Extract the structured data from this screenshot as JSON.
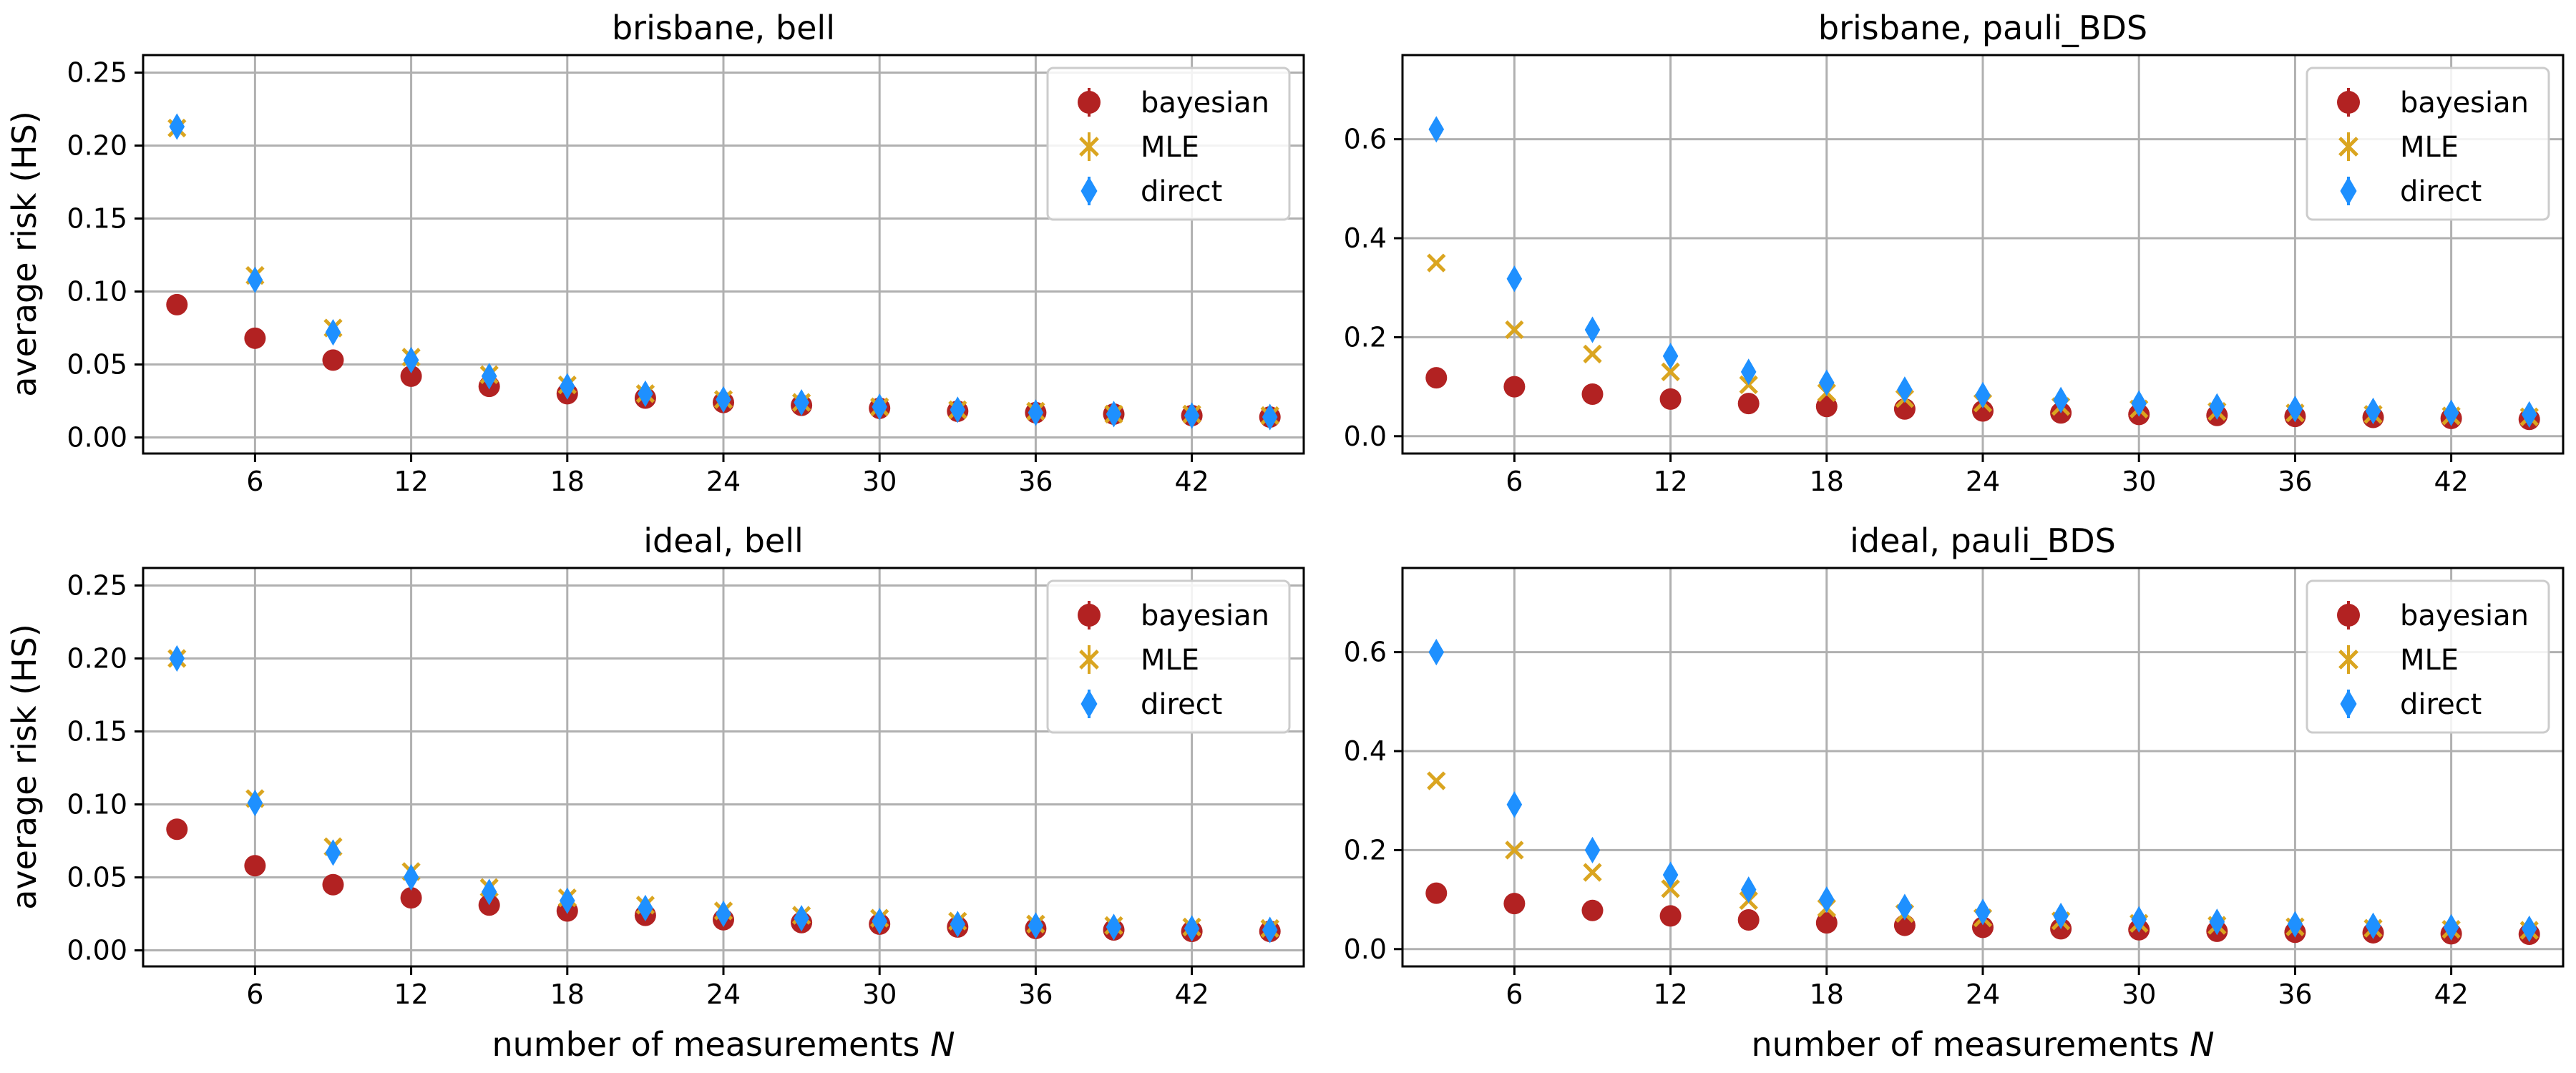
{
  "figure": {
    "xlabel": "number of measurements",
    "xlabel_var": "N",
    "ylabel": "average risk (HS)"
  },
  "colors": {
    "bayesian": "#b22222",
    "MLE": "#daa520",
    "direct": "#1e90ff",
    "grid": "#b0b0b0"
  },
  "legend": [
    {
      "name": "bayesian",
      "marker": "circle-errorbar"
    },
    {
      "name": "MLE",
      "marker": "x-errorbar"
    },
    {
      "name": "direct",
      "marker": "thin-diamond-errorbar"
    }
  ],
  "chart_data": [
    {
      "type": "scatter",
      "title": "brisbane, bell",
      "x": [
        3,
        6,
        9,
        12,
        15,
        18,
        21,
        24,
        27,
        30,
        33,
        36,
        39,
        42,
        45
      ],
      "xticks": [
        "6",
        "12",
        "18",
        "24",
        "30",
        "36",
        "42"
      ],
      "xlim": [
        1.7,
        46.3
      ],
      "ylim": [
        -0.011,
        0.262
      ],
      "yticks": [
        "0.00",
        "0.05",
        "0.10",
        "0.15",
        "0.20",
        "0.25"
      ],
      "grid": true,
      "legend_position": "top-right",
      "series": [
        {
          "name": "bayesian",
          "values": [
            0.091,
            0.068,
            0.053,
            0.042,
            0.035,
            0.03,
            0.027,
            0.024,
            0.022,
            0.02,
            0.018,
            0.017,
            0.016,
            0.015,
            0.014
          ]
        },
        {
          "name": "MLE",
          "values": [
            0.212,
            0.111,
            0.075,
            0.055,
            0.043,
            0.036,
            0.03,
            0.026,
            0.024,
            0.021,
            0.019,
            0.018,
            0.016,
            0.016,
            0.015
          ]
        },
        {
          "name": "direct",
          "values": [
            0.213,
            0.108,
            0.072,
            0.053,
            0.042,
            0.035,
            0.03,
            0.026,
            0.024,
            0.021,
            0.019,
            0.017,
            0.016,
            0.015,
            0.014
          ]
        }
      ]
    },
    {
      "type": "scatter",
      "title": "brisbane, pauli_BDS",
      "x": [
        3,
        6,
        9,
        12,
        15,
        18,
        21,
        24,
        27,
        30,
        33,
        36,
        39,
        42,
        45
      ],
      "xticks": [
        "6",
        "12",
        "18",
        "24",
        "30",
        "36",
        "42"
      ],
      "xlim": [
        1.7,
        46.3
      ],
      "ylim": [
        -0.035,
        0.77
      ],
      "yticks": [
        "0.0",
        "0.2",
        "0.4",
        "0.6"
      ],
      "grid": true,
      "legend_position": "top-right",
      "series": [
        {
          "name": "bayesian",
          "values": [
            0.118,
            0.1,
            0.085,
            0.075,
            0.066,
            0.06,
            0.055,
            0.051,
            0.047,
            0.044,
            0.042,
            0.04,
            0.038,
            0.036,
            0.034
          ]
        },
        {
          "name": "MLE",
          "values": [
            0.35,
            0.215,
            0.166,
            0.13,
            0.104,
            0.088,
            0.076,
            0.067,
            0.06,
            0.055,
            0.05,
            0.047,
            0.044,
            0.041,
            0.039
          ]
        },
        {
          "name": "direct",
          "values": [
            0.62,
            0.318,
            0.215,
            0.162,
            0.13,
            0.108,
            0.094,
            0.083,
            0.073,
            0.066,
            0.06,
            0.055,
            0.051,
            0.047,
            0.044
          ]
        }
      ]
    },
    {
      "type": "scatter",
      "title": "ideal, bell",
      "x": [
        3,
        6,
        9,
        12,
        15,
        18,
        21,
        24,
        27,
        30,
        33,
        36,
        39,
        42,
        45
      ],
      "xticks": [
        "6",
        "12",
        "18",
        "24",
        "30",
        "36",
        "42"
      ],
      "xlim": [
        1.7,
        46.3
      ],
      "ylim": [
        -0.011,
        0.262
      ],
      "yticks": [
        "0.00",
        "0.05",
        "0.10",
        "0.15",
        "0.20",
        "0.25"
      ],
      "grid": true,
      "legend_position": "top-right",
      "series": [
        {
          "name": "bayesian",
          "values": [
            0.083,
            0.058,
            0.045,
            0.036,
            0.031,
            0.027,
            0.024,
            0.021,
            0.019,
            0.018,
            0.016,
            0.015,
            0.014,
            0.013,
            0.013
          ]
        },
        {
          "name": "MLE",
          "values": [
            0.2,
            0.104,
            0.071,
            0.054,
            0.043,
            0.036,
            0.031,
            0.027,
            0.024,
            0.022,
            0.02,
            0.018,
            0.017,
            0.016,
            0.015
          ]
        },
        {
          "name": "direct",
          "values": [
            0.2,
            0.101,
            0.067,
            0.05,
            0.04,
            0.034,
            0.029,
            0.025,
            0.022,
            0.02,
            0.018,
            0.017,
            0.016,
            0.015,
            0.014
          ]
        }
      ]
    },
    {
      "type": "scatter",
      "title": "ideal, pauli_BDS",
      "x": [
        3,
        6,
        9,
        12,
        15,
        18,
        21,
        24,
        27,
        30,
        33,
        36,
        39,
        42,
        45
      ],
      "xticks": [
        "6",
        "12",
        "18",
        "24",
        "30",
        "36",
        "42"
      ],
      "xlim": [
        1.7,
        46.3
      ],
      "ylim": [
        -0.035,
        0.77
      ],
      "yticks": [
        "0.0",
        "0.2",
        "0.4",
        "0.6"
      ],
      "grid": true,
      "legend_position": "top-right",
      "series": [
        {
          "name": "bayesian",
          "values": [
            0.113,
            0.092,
            0.078,
            0.067,
            0.059,
            0.053,
            0.048,
            0.044,
            0.041,
            0.039,
            0.036,
            0.034,
            0.033,
            0.031,
            0.03
          ]
        },
        {
          "name": "MLE",
          "values": [
            0.34,
            0.2,
            0.155,
            0.122,
            0.098,
            0.083,
            0.072,
            0.063,
            0.057,
            0.052,
            0.048,
            0.045,
            0.042,
            0.04,
            0.038
          ]
        },
        {
          "name": "direct",
          "values": [
            0.6,
            0.292,
            0.2,
            0.15,
            0.12,
            0.1,
            0.085,
            0.075,
            0.067,
            0.06,
            0.055,
            0.05,
            0.047,
            0.044,
            0.041
          ]
        }
      ]
    }
  ]
}
